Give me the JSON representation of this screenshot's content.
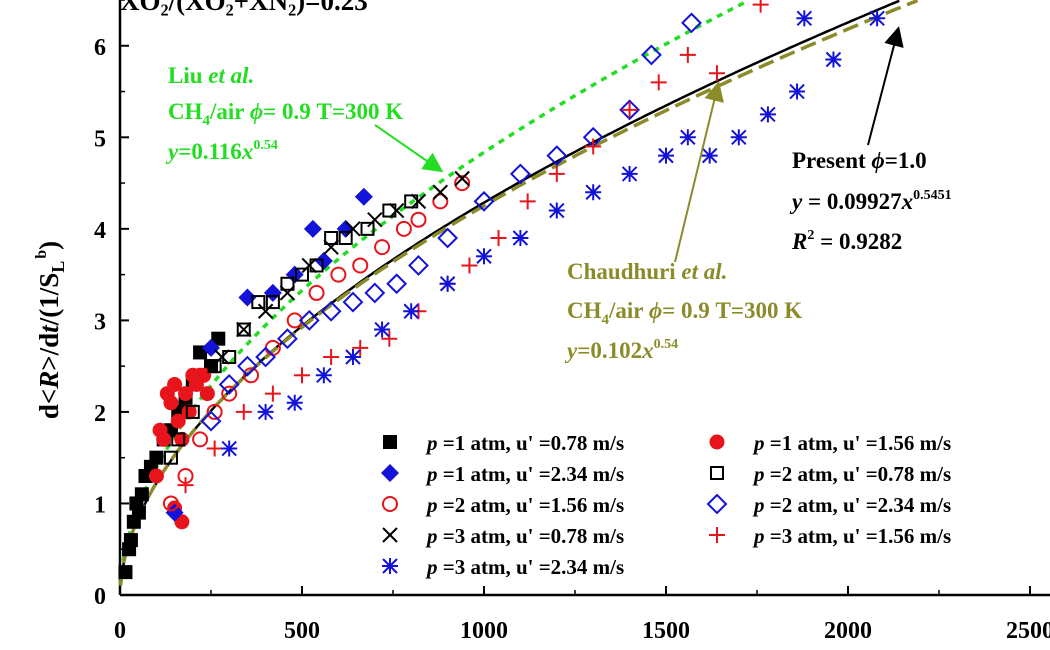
{
  "chart_data": {
    "type": "scatter",
    "title_fragment": "XO₂/(XO₂+XN₂)=0.23",
    "ylabel": {
      "prefix": "d<",
      "var": "R",
      "mid": ">/d",
      "tvar": "t",
      "rest": "/(1/S",
      "sub": "L",
      "sup": "b",
      "close": ")"
    },
    "xlim": [
      0,
      2500
    ],
    "ylim": [
      0,
      6.5
    ],
    "x_ticks": [
      "0",
      "500",
      "1000",
      "1500",
      "2000",
      "2500"
    ],
    "y_ticks": [
      "0",
      "1",
      "2",
      "3",
      "4",
      "5",
      "6"
    ],
    "grid": false,
    "legend_position": "bottom-right",
    "series": [
      {
        "name": "p =1 atm, u' =0.78 m/s",
        "marker": "filled-square",
        "color": "#000000",
        "x": [
          15,
          25,
          30,
          38,
          45,
          52,
          60,
          70,
          85,
          100,
          120,
          140,
          160,
          180,
          200,
          220,
          250,
          270
        ],
        "y": [
          0.25,
          0.5,
          0.6,
          0.8,
          1.0,
          0.9,
          1.1,
          1.3,
          1.4,
          1.5,
          1.7,
          1.8,
          2.0,
          2.1,
          2.3,
          2.65,
          2.5,
          2.8
        ]
      },
      {
        "name": "p =1 atm, u' =1.56 m/s",
        "marker": "filled-circle",
        "color": "#e8141c",
        "x": [
          100,
          110,
          120,
          130,
          140,
          150,
          160,
          170,
          180,
          190,
          200,
          210,
          220,
          230,
          240,
          150,
          170
        ],
        "y": [
          1.3,
          1.8,
          1.7,
          2.2,
          2.1,
          2.3,
          1.9,
          1.7,
          2.2,
          2.0,
          2.4,
          2.3,
          2.4,
          2.4,
          2.2,
          0.95,
          0.8
        ]
      },
      {
        "name": "p =1 atm, u' =2.34 m/s",
        "marker": "filled-diamond",
        "color": "#1212d8",
        "x": [
          150,
          250,
          350,
          420,
          480,
          530,
          560,
          620,
          670
        ],
        "y": [
          0.9,
          2.7,
          3.25,
          3.3,
          3.5,
          4.0,
          3.65,
          4.0,
          4.35
        ]
      },
      {
        "name": "p =2 atm, u' =0.78 m/s",
        "marker": "open-square",
        "color": "#000000",
        "x": [
          140,
          160,
          200,
          260,
          300,
          340,
          380,
          420,
          460,
          500,
          540,
          580,
          620,
          680,
          740,
          800
        ],
        "y": [
          1.5,
          1.7,
          2.0,
          2.5,
          2.6,
          2.9,
          3.2,
          3.2,
          3.4,
          3.5,
          3.6,
          3.9,
          3.9,
          4.0,
          4.2,
          4.3
        ]
      },
      {
        "name": "p =2 atm, u' =1.56 m/s",
        "marker": "open-circle",
        "color": "#e8141c",
        "x": [
          140,
          180,
          220,
          260,
          300,
          360,
          420,
          480,
          540,
          600,
          660,
          720,
          780,
          820,
          880,
          940
        ],
        "y": [
          1.0,
          1.3,
          1.7,
          2.0,
          2.2,
          2.4,
          2.7,
          3.0,
          3.3,
          3.5,
          3.6,
          3.8,
          4.0,
          4.1,
          4.3,
          4.5
        ]
      },
      {
        "name": "p =2 atm, u' =2.34 m/s",
        "marker": "open-diamond",
        "color": "#1212d8",
        "x": [
          250,
          300,
          350,
          400,
          460,
          520,
          580,
          640,
          700,
          760,
          820,
          900,
          1000,
          1100,
          1200,
          1300,
          1400,
          1460,
          1570
        ],
        "y": [
          1.9,
          2.3,
          2.5,
          2.6,
          2.8,
          3.0,
          3.1,
          3.2,
          3.3,
          3.4,
          3.6,
          3.9,
          4.3,
          4.6,
          4.8,
          5.0,
          5.3,
          5.9,
          6.25
        ]
      },
      {
        "name": "p =3 atm, u' =0.78 m/s",
        "marker": "x",
        "color": "#000000",
        "x": [
          280,
          340,
          400,
          460,
          520,
          580,
          640,
          700,
          760,
          820,
          880,
          940
        ],
        "y": [
          2.6,
          2.9,
          3.1,
          3.3,
          3.6,
          3.8,
          4.0,
          4.1,
          4.2,
          4.3,
          4.4,
          4.55
        ]
      },
      {
        "name": "p =3 atm, u' =1.56 m/s",
        "marker": "plus",
        "color": "#e8141c",
        "x": [
          180,
          260,
          340,
          420,
          500,
          580,
          660,
          740,
          820,
          900,
          960,
          1040,
          1120,
          1200,
          1300,
          1400,
          1480,
          1560,
          1640,
          1760
        ],
        "y": [
          1.2,
          1.6,
          2.0,
          2.2,
          2.4,
          2.6,
          2.7,
          2.8,
          3.1,
          3.4,
          3.6,
          3.9,
          4.3,
          4.6,
          4.9,
          5.3,
          5.6,
          5.9,
          5.7,
          6.45
        ]
      },
      {
        "name": "p =3 atm, u' =2.34 m/s",
        "marker": "asterisk",
        "color": "#1212d8",
        "x": [
          300,
          400,
          480,
          560,
          640,
          720,
          800,
          900,
          1000,
          1100,
          1200,
          1300,
          1400,
          1500,
          1560,
          1620,
          1700,
          1780,
          1860,
          1880,
          1960,
          2080
        ],
        "y": [
          1.6,
          2.0,
          2.1,
          2.4,
          2.6,
          2.9,
          3.1,
          3.4,
          3.7,
          3.9,
          4.2,
          4.4,
          4.6,
          4.8,
          5.0,
          4.8,
          5.0,
          5.25,
          5.5,
          6.3,
          5.85,
          6.3
        ]
      }
    ],
    "fits": [
      {
        "name": "Present",
        "a": 0.09927,
        "b": 0.5451,
        "color": "#000000",
        "style": "solid"
      },
      {
        "name": "Liu et al.",
        "a": 0.116,
        "b": 0.54,
        "color": "#22dd22",
        "style": "dotted"
      },
      {
        "name": "Chaudhuri et al.",
        "a": 0.102,
        "b": 0.54,
        "color": "#8b8b2a",
        "style": "dashed"
      }
    ],
    "annotations": {
      "liu": {
        "line1_name": "Liu ",
        "line1_etal": "et al.",
        "line2": "CH",
        "line2_sub": "4",
        "line2_rest": "/air ",
        "line2_phi": "ϕ",
        "line2_tail": "= 0.9 T=300 K",
        "line3_y": "y",
        "line3_eq": "=0.116",
        "line3_x": "x",
        "line3_sup": "0.54",
        "color": "#22dd22"
      },
      "chaudhuri": {
        "line1_name": "Chaudhuri ",
        "line1_etal": "et al.",
        "line2": "CH",
        "line2_sub": "4",
        "line2_rest": "/air ",
        "line2_phi": "ϕ",
        "line2_tail": "= 0.9 T=300 K",
        "line3_y": "y",
        "line3_eq": "=0.102",
        "line3_x": "x",
        "line3_sup": "0.54",
        "color": "#8b8b2a"
      },
      "present": {
        "line1": "Present ",
        "line1_phi": "ϕ",
        "line1_tail": "=1.0",
        "line2_y": "y",
        "line2_eq": " = 0.09927",
        "line2_x": "x",
        "line2_sup": "0.5451",
        "line3_r": "R",
        "line3_sup": "2",
        "line3_tail": " = 0.9282",
        "color": "#000000"
      }
    }
  }
}
